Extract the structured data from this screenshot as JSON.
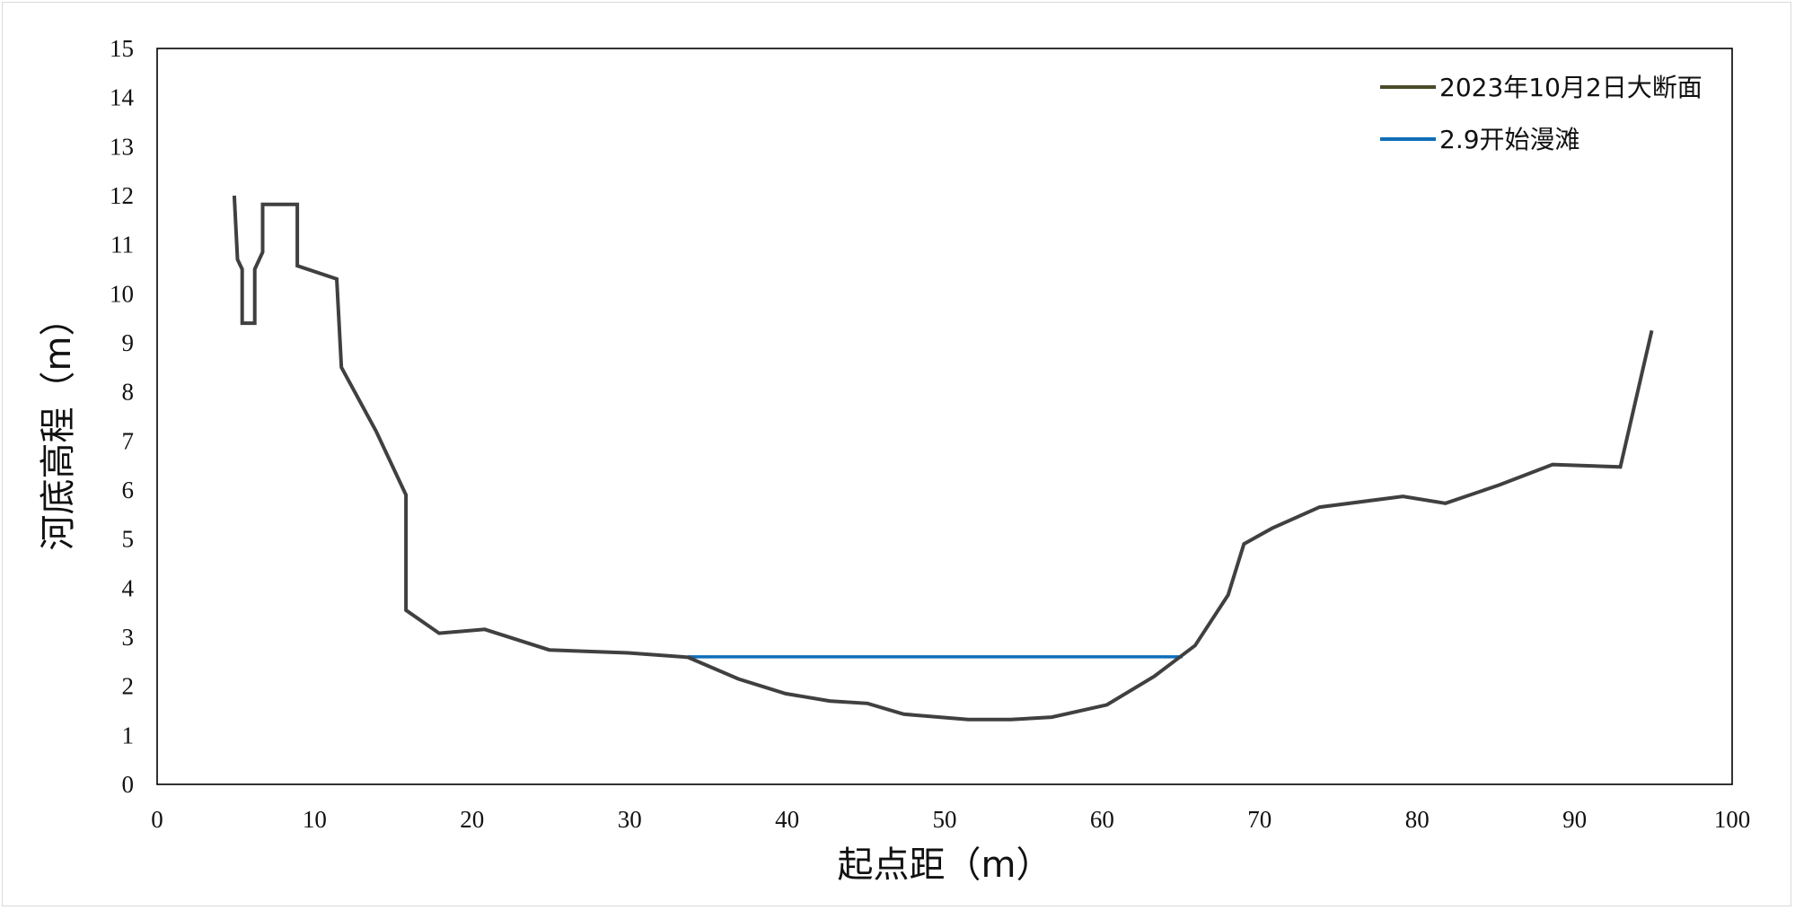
{
  "chart_data": {
    "type": "line",
    "title": "",
    "xlabel": "起点距（m）",
    "ylabel": "河底高程（m）",
    "xlim": [
      0,
      100
    ],
    "ylim": [
      0,
      15
    ],
    "x_ticks": [
      "0",
      "10",
      "20",
      "30",
      "40",
      "50",
      "60",
      "70",
      "80",
      "90",
      "100"
    ],
    "y_ticks": [
      "0",
      "1",
      "2",
      "3",
      "4",
      "5",
      "6",
      "7",
      "8",
      "9",
      "10",
      "11",
      "12",
      "13",
      "14",
      "15"
    ],
    "grid": false,
    "legend_position": "top-right",
    "series": [
      {
        "name": "2023年10月2日大断面",
        "color": "#404040",
        "legend_color": "#4a4a2a",
        "points": [
          [
            4.9,
            12.0
          ],
          [
            5.1,
            10.7
          ],
          [
            5.4,
            10.5
          ],
          [
            5.4,
            9.4
          ],
          [
            6.2,
            9.4
          ],
          [
            6.2,
            10.5
          ],
          [
            6.7,
            10.85
          ],
          [
            6.7,
            11.82
          ],
          [
            8.9,
            11.82
          ],
          [
            8.9,
            10.57
          ],
          [
            11.4,
            10.3
          ],
          [
            11.7,
            8.5
          ],
          [
            13.9,
            7.2
          ],
          [
            15.8,
            5.9
          ],
          [
            15.8,
            3.55
          ],
          [
            17.9,
            3.08
          ],
          [
            20.8,
            3.16
          ],
          [
            24.9,
            2.74
          ],
          [
            29.9,
            2.68
          ],
          [
            33.7,
            2.59
          ],
          [
            36.9,
            2.15
          ],
          [
            39.9,
            1.85
          ],
          [
            42.7,
            1.7
          ],
          [
            45.1,
            1.65
          ],
          [
            47.4,
            1.43
          ],
          [
            51.5,
            1.32
          ],
          [
            54.2,
            1.32
          ],
          [
            56.8,
            1.37
          ],
          [
            60.3,
            1.62
          ],
          [
            63.3,
            2.2
          ],
          [
            65.9,
            2.83
          ],
          [
            68.0,
            3.86
          ],
          [
            69.0,
            4.9
          ],
          [
            70.8,
            5.22
          ],
          [
            73.8,
            5.65
          ],
          [
            79.1,
            5.87
          ],
          [
            81.8,
            5.73
          ],
          [
            85.2,
            6.1
          ],
          [
            88.6,
            6.52
          ],
          [
            92.9,
            6.47
          ],
          [
            94.9,
            9.25
          ]
        ]
      },
      {
        "name": "2.9开始漫滩",
        "color": "#0e6db7",
        "points": [
          [
            33.7,
            2.6
          ],
          [
            65.1,
            2.6
          ]
        ]
      }
    ]
  }
}
